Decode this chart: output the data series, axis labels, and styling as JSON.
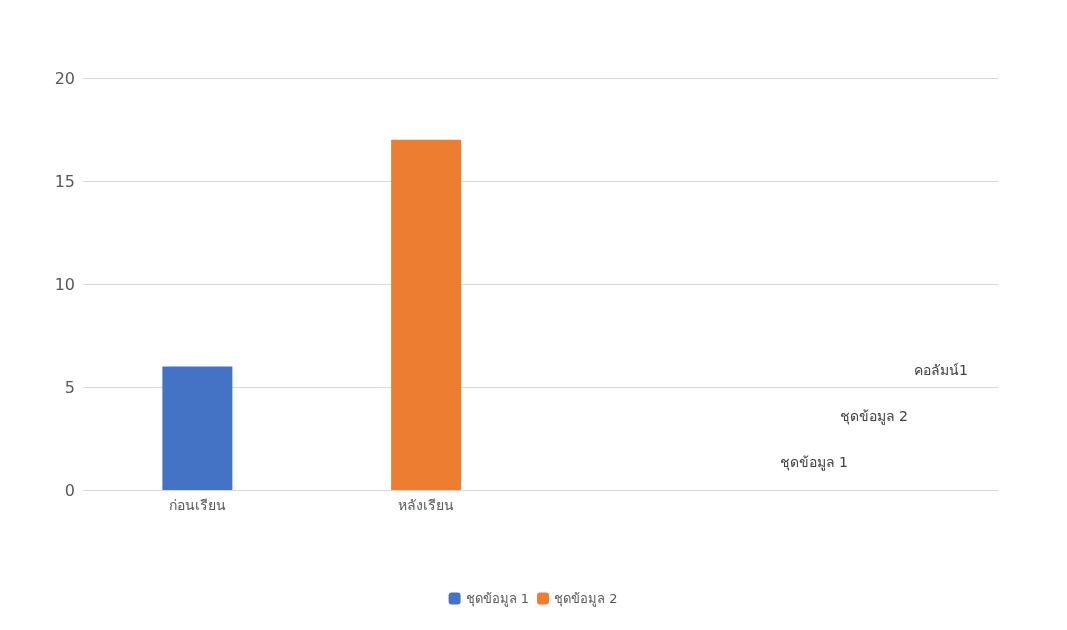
{
  "chart_data": {
    "type": "bar",
    "categories": [
      "ก่อนเรียน",
      "หลังเรียน",
      null,
      null
    ],
    "series": [
      {
        "name": "ชุดข้อมูล 1",
        "color": "#4472c4",
        "values": [
          6,
          null,
          null,
          null
        ]
      },
      {
        "name": "ชุดข้อมูล 2",
        "color": "#ed7d31",
        "values": [
          null,
          17,
          null,
          null
        ]
      }
    ],
    "ylim": [
      0,
      20
    ],
    "yticks": [
      0,
      5,
      10,
      15,
      20
    ],
    "grid": "y",
    "legend": "bottom",
    "annotations": [
      "คอลัมน์1",
      "ชุดข้อมูล 2",
      "ชุดข้อมูล 1"
    ]
  }
}
